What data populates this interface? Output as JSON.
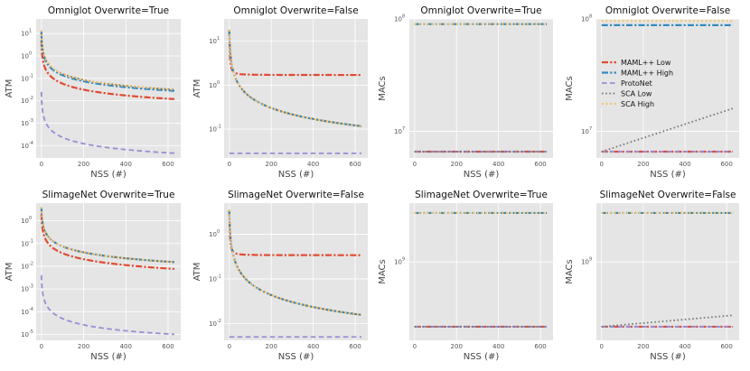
{
  "colors": {
    "maml_low": "#E24A33",
    "maml_high": "#348ABD",
    "protonet": "#988ED5",
    "sca_low": "#777777",
    "sca_high": "#FBC15E",
    "panel_bg": "#E5E5E5",
    "grid": "#FFFFFF"
  },
  "chart_data": [
    {
      "type": "line",
      "title": "Omniglot Overwrite=True",
      "xlabel": "NSS (#)",
      "ylabel": "ATM",
      "yscale": "log",
      "xlim": [
        -25,
        660
      ],
      "ylim": [
        2.8e-05,
        45
      ],
      "yticks": [
        {
          "v": 0.0001,
          "exp": "-4"
        },
        {
          "v": 0.001,
          "exp": "-3"
        },
        {
          "v": 0.01,
          "exp": "-2"
        },
        {
          "v": 0.1,
          "exp": "-1"
        },
        {
          "v": 1,
          "exp": "0"
        },
        {
          "v": 10,
          "exp": "1"
        }
      ],
      "xticks": [
        0,
        200,
        400,
        600
      ],
      "legend": false,
      "series": [
        {
          "key": "maml_low",
          "name": "MAML++ Low",
          "model": "inv",
          "y0": 5,
          "yinf": 0.002,
          "tau": 0.9,
          "p": 0.95
        },
        {
          "key": "maml_high",
          "name": "MAML++ High",
          "model": "inv",
          "y0": 12,
          "yinf": 0.004,
          "tau": 0.9,
          "p": 0.95
        },
        {
          "key": "protonet",
          "name": "ProtoNet",
          "model": "inv",
          "y0": 0.025,
          "yinf": 1e-05,
          "tau": 0.9,
          "p": 1.0
        },
        {
          "key": "sca_low",
          "name": "SCA Low",
          "model": "inv",
          "y0": 14,
          "yinf": 0.004,
          "tau": 0.9,
          "p": 0.95
        },
        {
          "key": "sca_high",
          "name": "SCA High",
          "model": "inv",
          "y0": 14,
          "yinf": 0.004,
          "tau": 0.9,
          "p": 0.95
        }
      ]
    },
    {
      "type": "line",
      "title": "Omniglot Overwrite=False",
      "xlabel": "NSS (#)",
      "ylabel": "ATM",
      "yscale": "log",
      "xlim": [
        -25,
        660
      ],
      "ylim": [
        0.022,
        32
      ],
      "yticks": [
        {
          "v": 0.1,
          "exp": "-1"
        },
        {
          "v": 1,
          "exp": "0"
        },
        {
          "v": 10,
          "exp": "1"
        }
      ],
      "xticks": [
        0,
        200,
        400,
        600
      ],
      "legend": false,
      "series": [
        {
          "key": "maml_low",
          "name": "MAML++ Low",
          "model": "step",
          "y0": 18,
          "yinf": 1.7,
          "tau": 1.5
        },
        {
          "key": "protonet",
          "name": "ProtoNet",
          "model": "flat",
          "v": 0.028
        },
        {
          "key": "maml_high",
          "name": "MAML++ High",
          "model": "inv",
          "y0": 18,
          "yinf": 0,
          "tau": 1.5,
          "p": 0.88
        },
        {
          "key": "sca_low",
          "name": "SCA Low",
          "model": "inv",
          "y0": 18,
          "yinf": 0,
          "tau": 1.5,
          "p": 0.88
        },
        {
          "key": "sca_high",
          "name": "SCA High",
          "model": "inv",
          "y0": 18,
          "yinf": 0,
          "tau": 1.5,
          "p": 0.88
        }
      ]
    },
    {
      "type": "line",
      "title": "Omniglot Overwrite=True",
      "xlabel": "NSS (#)",
      "ylabel": "MACs",
      "yscale": "log",
      "xlim": [
        -25,
        660
      ],
      "ylim": [
        5800000,
        100000000
      ],
      "yticks": [
        {
          "v": 10000000,
          "exp": "7"
        },
        {
          "v": 100000000,
          "exp": "8"
        }
      ],
      "xticks": [
        0,
        200,
        400,
        600
      ],
      "legend": false,
      "series": [
        {
          "key": "maml_high",
          "name": "MAML++ High",
          "model": "flat",
          "v": 90000000
        },
        {
          "key": "sca_high",
          "name": "SCA High",
          "model": "flat",
          "v": 90000000
        },
        {
          "key": "maml_low",
          "name": "MAML++ Low",
          "model": "flat",
          "v": 6600000
        },
        {
          "key": "protonet",
          "name": "ProtoNet",
          "model": "flat",
          "v": 6600000
        },
        {
          "key": "sca_low",
          "name": "SCA Low",
          "model": "flat",
          "v": 6600000
        }
      ]
    },
    {
      "type": "line",
      "title": "Omniglot Overwrite=False",
      "xlabel": "NSS (#)",
      "ylabel": "MACs",
      "yscale": "log",
      "xlim": [
        -25,
        660
      ],
      "ylim": [
        5800000,
        100000000
      ],
      "yticks": [
        {
          "v": 10000000,
          "exp": "7"
        },
        {
          "v": 100000000,
          "exp": "8"
        }
      ],
      "xticks": [
        0,
        200,
        400,
        600
      ],
      "legend": true,
      "series": [
        {
          "key": "maml_low",
          "name": "MAML++ Low",
          "model": "flat",
          "v": 6600000
        },
        {
          "key": "protonet",
          "name": "ProtoNet",
          "model": "flat",
          "v": 6600000
        },
        {
          "key": "maml_high",
          "name": "MAML++ High",
          "model": "flat",
          "v": 88000000
        },
        {
          "key": "sca_high",
          "name": "SCA High",
          "model": "flat",
          "v": 96000000
        },
        {
          "key": "sca_low",
          "name": "SCA Low",
          "model": "loglin",
          "a": 6600000,
          "b": 16000000,
          "xmax": 630
        }
      ]
    },
    {
      "type": "line",
      "title": "SlimageNet Overwrite=True",
      "xlabel": "NSS (#)",
      "ylabel": "ATM",
      "yscale": "log",
      "xlim": [
        -25,
        660
      ],
      "ylim": [
        5.5e-06,
        6
      ],
      "yticks": [
        {
          "v": 1e-05,
          "exp": "-5"
        },
        {
          "v": 0.0001,
          "exp": "-4"
        },
        {
          "v": 0.001,
          "exp": "-3"
        },
        {
          "v": 0.01,
          "exp": "-2"
        },
        {
          "v": 0.1,
          "exp": "-1"
        },
        {
          "v": 1,
          "exp": "0"
        }
      ],
      "xticks": [
        0,
        200,
        400,
        600
      ],
      "legend": false,
      "series": [
        {
          "key": "maml_low",
          "name": "MAML++ Low",
          "model": "inv",
          "y0": 2,
          "yinf": 0.0005,
          "tau": 1.2,
          "p": 0.9
        },
        {
          "key": "maml_high",
          "name": "MAML++ High",
          "model": "inv",
          "y0": 4,
          "yinf": 0.001,
          "tau": 1.2,
          "p": 0.9
        },
        {
          "key": "protonet",
          "name": "ProtoNet",
          "model": "inv",
          "y0": 0.004,
          "yinf": 2.5e-06,
          "tau": 1.2,
          "p": 1.0
        },
        {
          "key": "sca_low",
          "name": "SCA Low",
          "model": "inv",
          "y0": 4,
          "yinf": 0.001,
          "tau": 1.2,
          "p": 0.9
        },
        {
          "key": "sca_high",
          "name": "SCA High",
          "model": "inv",
          "y0": 4,
          "yinf": 0.001,
          "tau": 1.2,
          "p": 0.9
        }
      ]
    },
    {
      "type": "line",
      "title": "SlimageNet Overwrite=False",
      "xlabel": "NSS (#)",
      "ylabel": "ATM",
      "yscale": "log",
      "xlim": [
        -25,
        660
      ],
      "ylim": [
        0.0042,
        5
      ],
      "yticks": [
        {
          "v": 0.01,
          "exp": "-2"
        },
        {
          "v": 0.1,
          "exp": "-1"
        },
        {
          "v": 1,
          "exp": "0"
        }
      ],
      "xticks": [
        0,
        200,
        400,
        600
      ],
      "legend": false,
      "series": [
        {
          "key": "maml_low",
          "name": "MAML++ Low",
          "model": "step",
          "y0": 3.5,
          "yinf": 0.34,
          "tau": 1.5
        },
        {
          "key": "protonet",
          "name": "ProtoNet",
          "model": "flat",
          "v": 0.005
        },
        {
          "key": "maml_high",
          "name": "MAML++ High",
          "model": "inv",
          "y0": 3.5,
          "yinf": 0,
          "tau": 1.5,
          "p": 0.95
        },
        {
          "key": "sca_low",
          "name": "SCA Low",
          "model": "inv",
          "y0": 3.5,
          "yinf": 0,
          "tau": 1.5,
          "p": 0.95
        },
        {
          "key": "sca_high",
          "name": "SCA High",
          "model": "inv",
          "y0": 3.5,
          "yinf": 0,
          "tau": 1.5,
          "p": 0.95
        }
      ]
    },
    {
      "type": "line",
      "title": "SlimageNet Overwrite=True",
      "xlabel": "NSS (#)",
      "ylabel": "MACs",
      "yscale": "log",
      "xlim": [
        -25,
        660
      ],
      "ylim": [
        330000000,
        2300000000
      ],
      "yticks": [
        {
          "v": 1000000000,
          "exp": "9"
        }
      ],
      "xticks": [
        0,
        200,
        400,
        600
      ],
      "legend": false,
      "series": [
        {
          "key": "maml_high",
          "name": "MAML++ High",
          "model": "flat",
          "v": 2000000000
        },
        {
          "key": "sca_high",
          "name": "SCA High",
          "model": "flat",
          "v": 2000000000
        },
        {
          "key": "maml_low",
          "name": "MAML++ Low",
          "model": "flat",
          "v": 400000000
        },
        {
          "key": "protonet",
          "name": "ProtoNet",
          "model": "flat",
          "v": 400000000
        },
        {
          "key": "sca_low",
          "name": "SCA Low",
          "model": "flat",
          "v": 400000000
        }
      ]
    },
    {
      "type": "line",
      "title": "SlimageNet Overwrite=False",
      "xlabel": "NSS (#)",
      "ylabel": "MACs",
      "yscale": "log",
      "xlim": [
        -25,
        660
      ],
      "ylim": [
        330000000,
        2300000000
      ],
      "yticks": [
        {
          "v": 1000000000,
          "exp": "9"
        }
      ],
      "xticks": [
        0,
        200,
        400,
        600
      ],
      "legend": false,
      "series": [
        {
          "key": "maml_high",
          "name": "MAML++ High",
          "model": "flat",
          "v": 2000000000
        },
        {
          "key": "sca_high",
          "name": "SCA High",
          "model": "flat",
          "v": 2000000000
        },
        {
          "key": "maml_low",
          "name": "MAML++ Low",
          "model": "flat",
          "v": 400000000
        },
        {
          "key": "protonet",
          "name": "ProtoNet",
          "model": "flat",
          "v": 400000000
        },
        {
          "key": "sca_low",
          "name": "SCA Low",
          "model": "loglin",
          "a": 400000000,
          "b": 470000000,
          "xmax": 630
        }
      ]
    }
  ],
  "legend": [
    {
      "key": "maml_low",
      "label": "MAML++ Low"
    },
    {
      "key": "maml_high",
      "label": "MAML++ High"
    },
    {
      "key": "protonet",
      "label": "ProtoNet"
    },
    {
      "key": "sca_low",
      "label": "SCA Low"
    },
    {
      "key": "sca_high",
      "label": "SCA High"
    }
  ]
}
